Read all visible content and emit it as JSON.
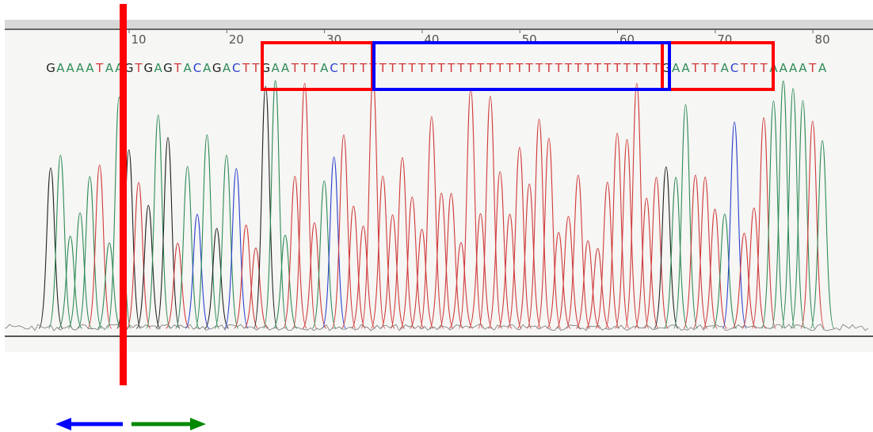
{
  "ruler": {
    "ticks": [
      10,
      20,
      30,
      40,
      50,
      60,
      70,
      80
    ]
  },
  "sequence": [
    "G",
    "A",
    "A",
    "A",
    "A",
    "T",
    "A",
    "A",
    "G",
    "T",
    "G",
    "A",
    "G",
    "T",
    "A",
    "C",
    "A",
    "G",
    "A",
    "C",
    "T",
    "T",
    "G",
    "A",
    "A",
    "T",
    "T",
    "T",
    "A",
    "C",
    "T",
    "T",
    "T",
    "T",
    "T",
    "T",
    "T",
    "T",
    "T",
    "T",
    "T",
    "T",
    "T",
    "T",
    "T",
    "T",
    "T",
    "T",
    "T",
    "T",
    "T",
    "T",
    "T",
    "T",
    "T",
    "T",
    "T",
    "T",
    "T",
    "T",
    "T",
    "T",
    "T",
    "G",
    "A",
    "A",
    "T",
    "T",
    "T",
    "A",
    "C",
    "T",
    "T",
    "T",
    "A",
    "A",
    "A",
    "A",
    "T",
    "A"
  ]
}
